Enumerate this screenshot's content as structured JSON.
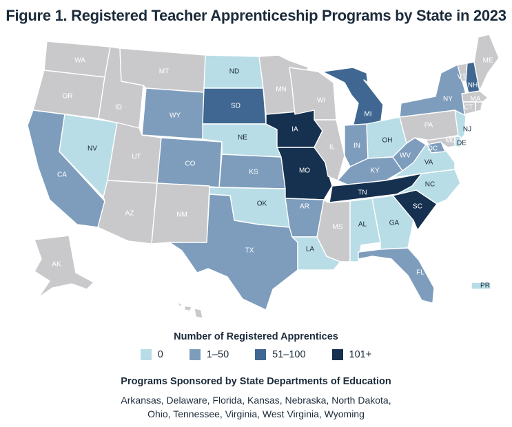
{
  "title": "Figure 1. Registered Teacher Apprenticeship Programs by State in 2023",
  "legend": {
    "title": "Number of Registered Apprentices",
    "items": [
      {
        "label": "0",
        "color": "#b8dde6"
      },
      {
        "label": "1–50",
        "color": "#7e9dbd"
      },
      {
        "label": "51–100",
        "color": "#3f6791"
      },
      {
        "label": "101+",
        "color": "#16304f"
      }
    ]
  },
  "colors": {
    "no_data": "#c9c9cb",
    "label_light": "#ffffff",
    "label_dark": "#1c2b3a"
  },
  "states": {
    "WA": {
      "label": "WA",
      "bin": "none"
    },
    "OR": {
      "label": "OR",
      "bin": "none"
    },
    "CA": {
      "label": "CA",
      "bin": "1-50"
    },
    "NV": {
      "label": "NV",
      "bin": "0"
    },
    "ID": {
      "label": "ID",
      "bin": "none"
    },
    "MT": {
      "label": "MT",
      "bin": "none"
    },
    "WY": {
      "label": "WY",
      "bin": "1-50"
    },
    "UT": {
      "label": "UT",
      "bin": "none"
    },
    "AZ": {
      "label": "AZ",
      "bin": "none"
    },
    "CO": {
      "label": "CO",
      "bin": "1-50"
    },
    "NM": {
      "label": "NM",
      "bin": "none"
    },
    "ND": {
      "label": "ND",
      "bin": "0"
    },
    "SD": {
      "label": "SD",
      "bin": "51-100"
    },
    "NE": {
      "label": "NE",
      "bin": "0"
    },
    "KS": {
      "label": "KS",
      "bin": "1-50"
    },
    "OK": {
      "label": "OK",
      "bin": "0"
    },
    "TX": {
      "label": "TX",
      "bin": "1-50"
    },
    "MN": {
      "label": "MN",
      "bin": "none"
    },
    "IA": {
      "label": "IA",
      "bin": "101+"
    },
    "MO": {
      "label": "MO",
      "bin": "101+"
    },
    "AR": {
      "label": "AR",
      "bin": "1-50"
    },
    "LA": {
      "label": "LA",
      "bin": "0"
    },
    "WI": {
      "label": "WI",
      "bin": "none"
    },
    "IL": {
      "label": "IL",
      "bin": "none"
    },
    "MI": {
      "label": "MI",
      "bin": "51-100"
    },
    "IN": {
      "label": "IN",
      "bin": "1-50"
    },
    "OH": {
      "label": "OH",
      "bin": "0"
    },
    "KY": {
      "label": "KY",
      "bin": "1-50"
    },
    "TN": {
      "label": "TN",
      "bin": "101+"
    },
    "MS": {
      "label": "MS",
      "bin": "none"
    },
    "AL": {
      "label": "AL",
      "bin": "0"
    },
    "GA": {
      "label": "GA",
      "bin": "0"
    },
    "FL": {
      "label": "FL",
      "bin": "1-50"
    },
    "SC": {
      "label": "SC",
      "bin": "101+"
    },
    "NC": {
      "label": "NC",
      "bin": "0"
    },
    "VA": {
      "label": "VA",
      "bin": "0"
    },
    "WV": {
      "label": "WV",
      "bin": "1-50"
    },
    "PA": {
      "label": "PA",
      "bin": "none"
    },
    "NY": {
      "label": "NY",
      "bin": "1-50"
    },
    "NJ": {
      "label": "NJ",
      "bin": "0"
    },
    "DE": {
      "label": "DE",
      "bin": "0"
    },
    "MD": {
      "label": "MD",
      "bin": "none"
    },
    "DC": {
      "label": "DC",
      "bin": "1-50"
    },
    "CT": {
      "label": "CT",
      "bin": "none"
    },
    "RI": {
      "label": "RI",
      "bin": "none"
    },
    "MA": {
      "label": "MA",
      "bin": "none"
    },
    "VT": {
      "label": "VT",
      "bin": "none"
    },
    "NH": {
      "label": "NH",
      "bin": "51-100"
    },
    "ME": {
      "label": "ME",
      "bin": "none"
    },
    "AK": {
      "label": "AK",
      "bin": "none"
    },
    "HI": {
      "label": "HI",
      "bin": "none"
    },
    "PR": {
      "label": "PR",
      "bin": "0"
    }
  },
  "sponsored": {
    "title": "Programs Sponsored by State Departments of Education",
    "line1": "Arkansas, Delaware, Florida, Kansas, Nebraska, North Dakota,",
    "line2": "Ohio, Tennessee, Virginia, West Virginia, Wyoming"
  }
}
